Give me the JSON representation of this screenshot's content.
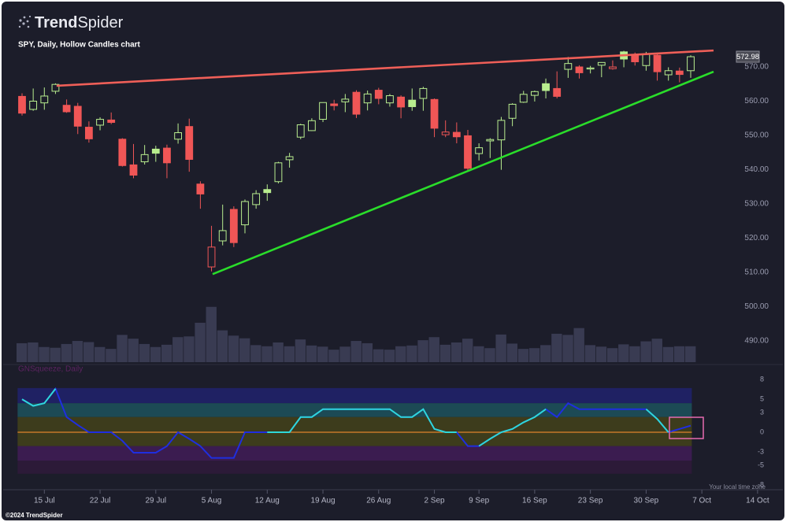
{
  "logo_bold": "Trend",
  "logo_regular": "Spider",
  "copyright": "©2024 TrendSpider",
  "timezone_note": "Your local time zone",
  "chart_data": {
    "type": "candlestick",
    "subtitle": "SPY, Daily, Hollow Candles chart",
    "categories": [
      null,
      null,
      "15 Jul",
      null,
      null,
      null,
      null,
      "22 Jul",
      null,
      null,
      null,
      null,
      "29 Jul",
      null,
      null,
      null,
      null,
      "5 Aug",
      null,
      null,
      null,
      null,
      "12 Aug",
      null,
      null,
      null,
      null,
      "19 Aug",
      null,
      null,
      null,
      null,
      "26 Aug",
      null,
      null,
      null,
      null,
      "2 Sep",
      null,
      null,
      null,
      "9 Sep",
      null,
      null,
      null,
      null,
      "16 Sep",
      null,
      null,
      null,
      null,
      "23 Sep",
      null,
      null,
      null,
      null,
      "30 Sep",
      null,
      null,
      null,
      null,
      "7 Oct",
      null,
      null,
      null,
      null,
      "14 Oct"
    ],
    "open": [
      561.4,
      557.6,
      559.5,
      562.9,
      558.8,
      558.5,
      552.4,
      553.0,
      554.5,
      548.9,
      541.4,
      542.3,
      546.0,
      546.3,
      548.9,
      552.6,
      535.8,
      511.6,
      519.2,
      528.4,
      523.9,
      529.8,
      534.2,
      536.5,
      542.9,
      549.5,
      551.4,
      554.7,
      559.2,
      559.8,
      562.6,
      559.5,
      563.2,
      559.5,
      561.2,
      560.3,
      560.8,
      560.5,
      550.2,
      550.9,
      549.9,
      544.7,
      548.4,
      548.7,
      555.0,
      559.7,
      561.7,
      565.1,
      563.7,
      569.3,
      570.0,
      569.4,
      570.5,
      569.5,
      574.4,
      573.4,
      570.4,
      573.4,
      567.7,
      568.8,
      568.9,
      null,
      null,
      null,
      null,
      null,
      null
    ],
    "high": [
      562.3,
      563.7,
      564.0,
      565.2,
      560.5,
      559.5,
      554.1,
      555.3,
      556.7,
      549.2,
      547.5,
      547.2,
      547.0,
      547.3,
      553.5,
      554.9,
      536.6,
      523.6,
      529.8,
      529.3,
      531.3,
      534.0,
      535.7,
      542.3,
      544.9,
      553.4,
      555.0,
      559.6,
      560.4,
      562.1,
      563.2,
      563.1,
      563.9,
      562.1,
      561.7,
      563.7,
      564.2,
      560.8,
      554.4,
      553.8,
      551.6,
      547.7,
      549.2,
      555.4,
      559.4,
      563.0,
      563.1,
      566.6,
      568.7,
      572.9,
      570.5,
      570.3,
      571.4,
      571.9,
      574.7,
      574.2,
      574.4,
      574.1,
      569.9,
      569.8,
      573.4,
      null,
      null,
      null,
      null,
      null,
      null
    ],
    "low": [
      555.8,
      557.2,
      557.5,
      562.1,
      556.6,
      550.4,
      547.9,
      551.5,
      553.3,
      540.9,
      537.5,
      541.5,
      542.3,
      537.5,
      547.6,
      539.4,
      528.6,
      510.3,
      517.9,
      517.4,
      521.4,
      528.6,
      530.9,
      536.0,
      540.6,
      548.9,
      551.3,
      553.9,
      557.3,
      556.8,
      555.1,
      557.3,
      559.1,
      558.4,
      555.0,
      557.2,
      557.2,
      549.5,
      549.5,
      547.7,
      539.4,
      542.7,
      543.4,
      539.96,
      552.7,
      559.5,
      559.9,
      560.8,
      560.8,
      566.8,
      566.6,
      568.1,
      567.0,
      569.2,
      569.9,
      570.4,
      568.9,
      566.0,
      566.0,
      565.5,
      566.8,
      null,
      null,
      null,
      null,
      null,
      null
    ],
    "close": [
      556.5,
      560.0,
      561.5,
      564.9,
      556.9,
      552.7,
      549.0,
      554.7,
      553.8,
      541.2,
      538.4,
      544.4,
      544.8,
      542.0,
      550.8,
      543.0,
      532.9,
      517.4,
      522.2,
      518.7,
      530.7,
      533.0,
      533.3,
      542.0,
      543.8,
      553.1,
      554.3,
      559.6,
      558.7,
      560.6,
      556.2,
      562.1,
      560.8,
      561.6,
      558.3,
      558.4,
      563.7,
      552.1,
      551.0,
      549.6,
      540.4,
      546.4,
      548.8,
      554.4,
      559.1,
      562.0,
      562.8,
      563.1,
      561.4,
      571.0,
      568.3,
      569.7,
      571.3,
      570.0,
      572.3,
      571.5,
      573.8,
      568.6,
      568.9,
      567.8,
      572.98,
      null,
      null,
      null,
      null,
      null,
      null
    ],
    "volume": [
      50,
      52,
      40,
      38,
      48,
      56,
      53,
      40,
      35,
      72,
      62,
      48,
      40,
      46,
      66,
      68,
      104,
      146,
      84,
      70,
      63,
      45,
      42,
      52,
      42,
      60,
      44,
      41,
      33,
      41,
      56,
      50,
      34,
      33,
      42,
      44,
      58,
      66,
      46,
      52,
      62,
      42,
      37,
      73,
      49,
      35,
      37,
      45,
      75,
      72,
      90,
      45,
      41,
      37,
      47,
      42,
      55,
      62,
      40,
      42,
      42,
      null,
      null,
      null,
      null,
      null,
      null
    ],
    "volume_lim": [
      0,
      160
    ],
    "volume_color": "#393b52",
    "up_color": "#b9ee8f",
    "down_color": "#f05656",
    "ylim": [
      480,
      580
    ],
    "yticks": [
      {
        "value": 490,
        "label": "490.00"
      },
      {
        "value": 500,
        "label": "500.00"
      },
      {
        "value": 510,
        "label": "510.00"
      },
      {
        "value": 520,
        "label": "520.00"
      },
      {
        "value": 530,
        "label": "530.00"
      },
      {
        "value": 540,
        "label": "540.00"
      },
      {
        "value": 550,
        "label": "550.00"
      },
      {
        "value": 560,
        "label": "560.00"
      },
      {
        "value": 570,
        "label": "570.00"
      }
    ],
    "last_price": 572.98,
    "trendlines": [
      {
        "color": "#ef5f58",
        "x": [
          3.1,
          62.05
        ],
        "values": [
          564.5,
          574.8
        ]
      },
      {
        "color": "#2add2a",
        "x": [
          17.1,
          62.05
        ],
        "values": [
          509.5,
          568.6
        ]
      }
    ],
    "indicator": {
      "title": "GNSqueeze, Daily",
      "ylim": [
        -8,
        8
      ],
      "yticks": [
        8,
        5,
        3,
        0,
        -3,
        -5,
        -8
      ],
      "zero_line_color": "#e0822c",
      "bands": [
        {
          "from": 4.4,
          "to": 6.7,
          "color": "#1f2163"
        },
        {
          "from": 2.3,
          "to": 4.4,
          "color": "#1c4a55"
        },
        {
          "from": -2.1,
          "to": 2.3,
          "color": "#3d3c1c"
        },
        {
          "from": -4.3,
          "to": -2.1,
          "color": "#3b1c50"
        },
        {
          "from": -6.3,
          "to": -4.3,
          "color": "#2c1a38"
        }
      ],
      "series": [
        {
          "color": "#1f2ee0",
          "values": [
            5.0,
            4.0,
            4.4,
            6.6,
            2.3,
            1.1,
            0,
            0,
            0,
            -1.3,
            -3.1,
            -3.1,
            -3.1,
            -2.1,
            0,
            -1.0,
            -2.1,
            -3.9,
            -3.9,
            -3.9,
            0,
            0,
            0,
            0,
            0,
            2.3,
            2.3,
            3.5,
            3.5,
            3.5,
            3.5,
            3.5,
            3.5,
            3.5,
            2.3,
            2.3,
            3.5,
            0.5,
            0,
            0,
            -2.1,
            -2.1,
            -1.0,
            0,
            0.5,
            1.5,
            2.3,
            3.5,
            2.3,
            4.4,
            3.5,
            3.5,
            3.5,
            3.5,
            3.5,
            3.5,
            3.5,
            2.0,
            0,
            0.5,
            1.0,
            null,
            null,
            null,
            null,
            null,
            null
          ]
        },
        {
          "color": "#2fd8d8",
          "values": [
            5.0,
            4.0,
            4.4,
            6.6,
            null,
            null,
            null,
            null,
            null,
            null,
            null,
            null,
            null,
            null,
            null,
            null,
            null,
            null,
            null,
            null,
            null,
            null,
            0,
            0,
            0,
            2.3,
            2.3,
            3.5,
            3.5,
            3.5,
            3.5,
            3.5,
            3.5,
            3.5,
            2.3,
            2.3,
            3.5,
            0.5,
            0,
            0,
            null,
            -2.1,
            -1.0,
            0,
            0.5,
            1.5,
            2.3,
            3.5,
            null,
            null,
            null,
            null,
            null,
            null,
            null,
            null,
            3.5,
            2.0,
            0,
            null,
            null,
            null,
            null,
            null,
            null,
            null,
            null
          ]
        }
      ]
    }
  }
}
